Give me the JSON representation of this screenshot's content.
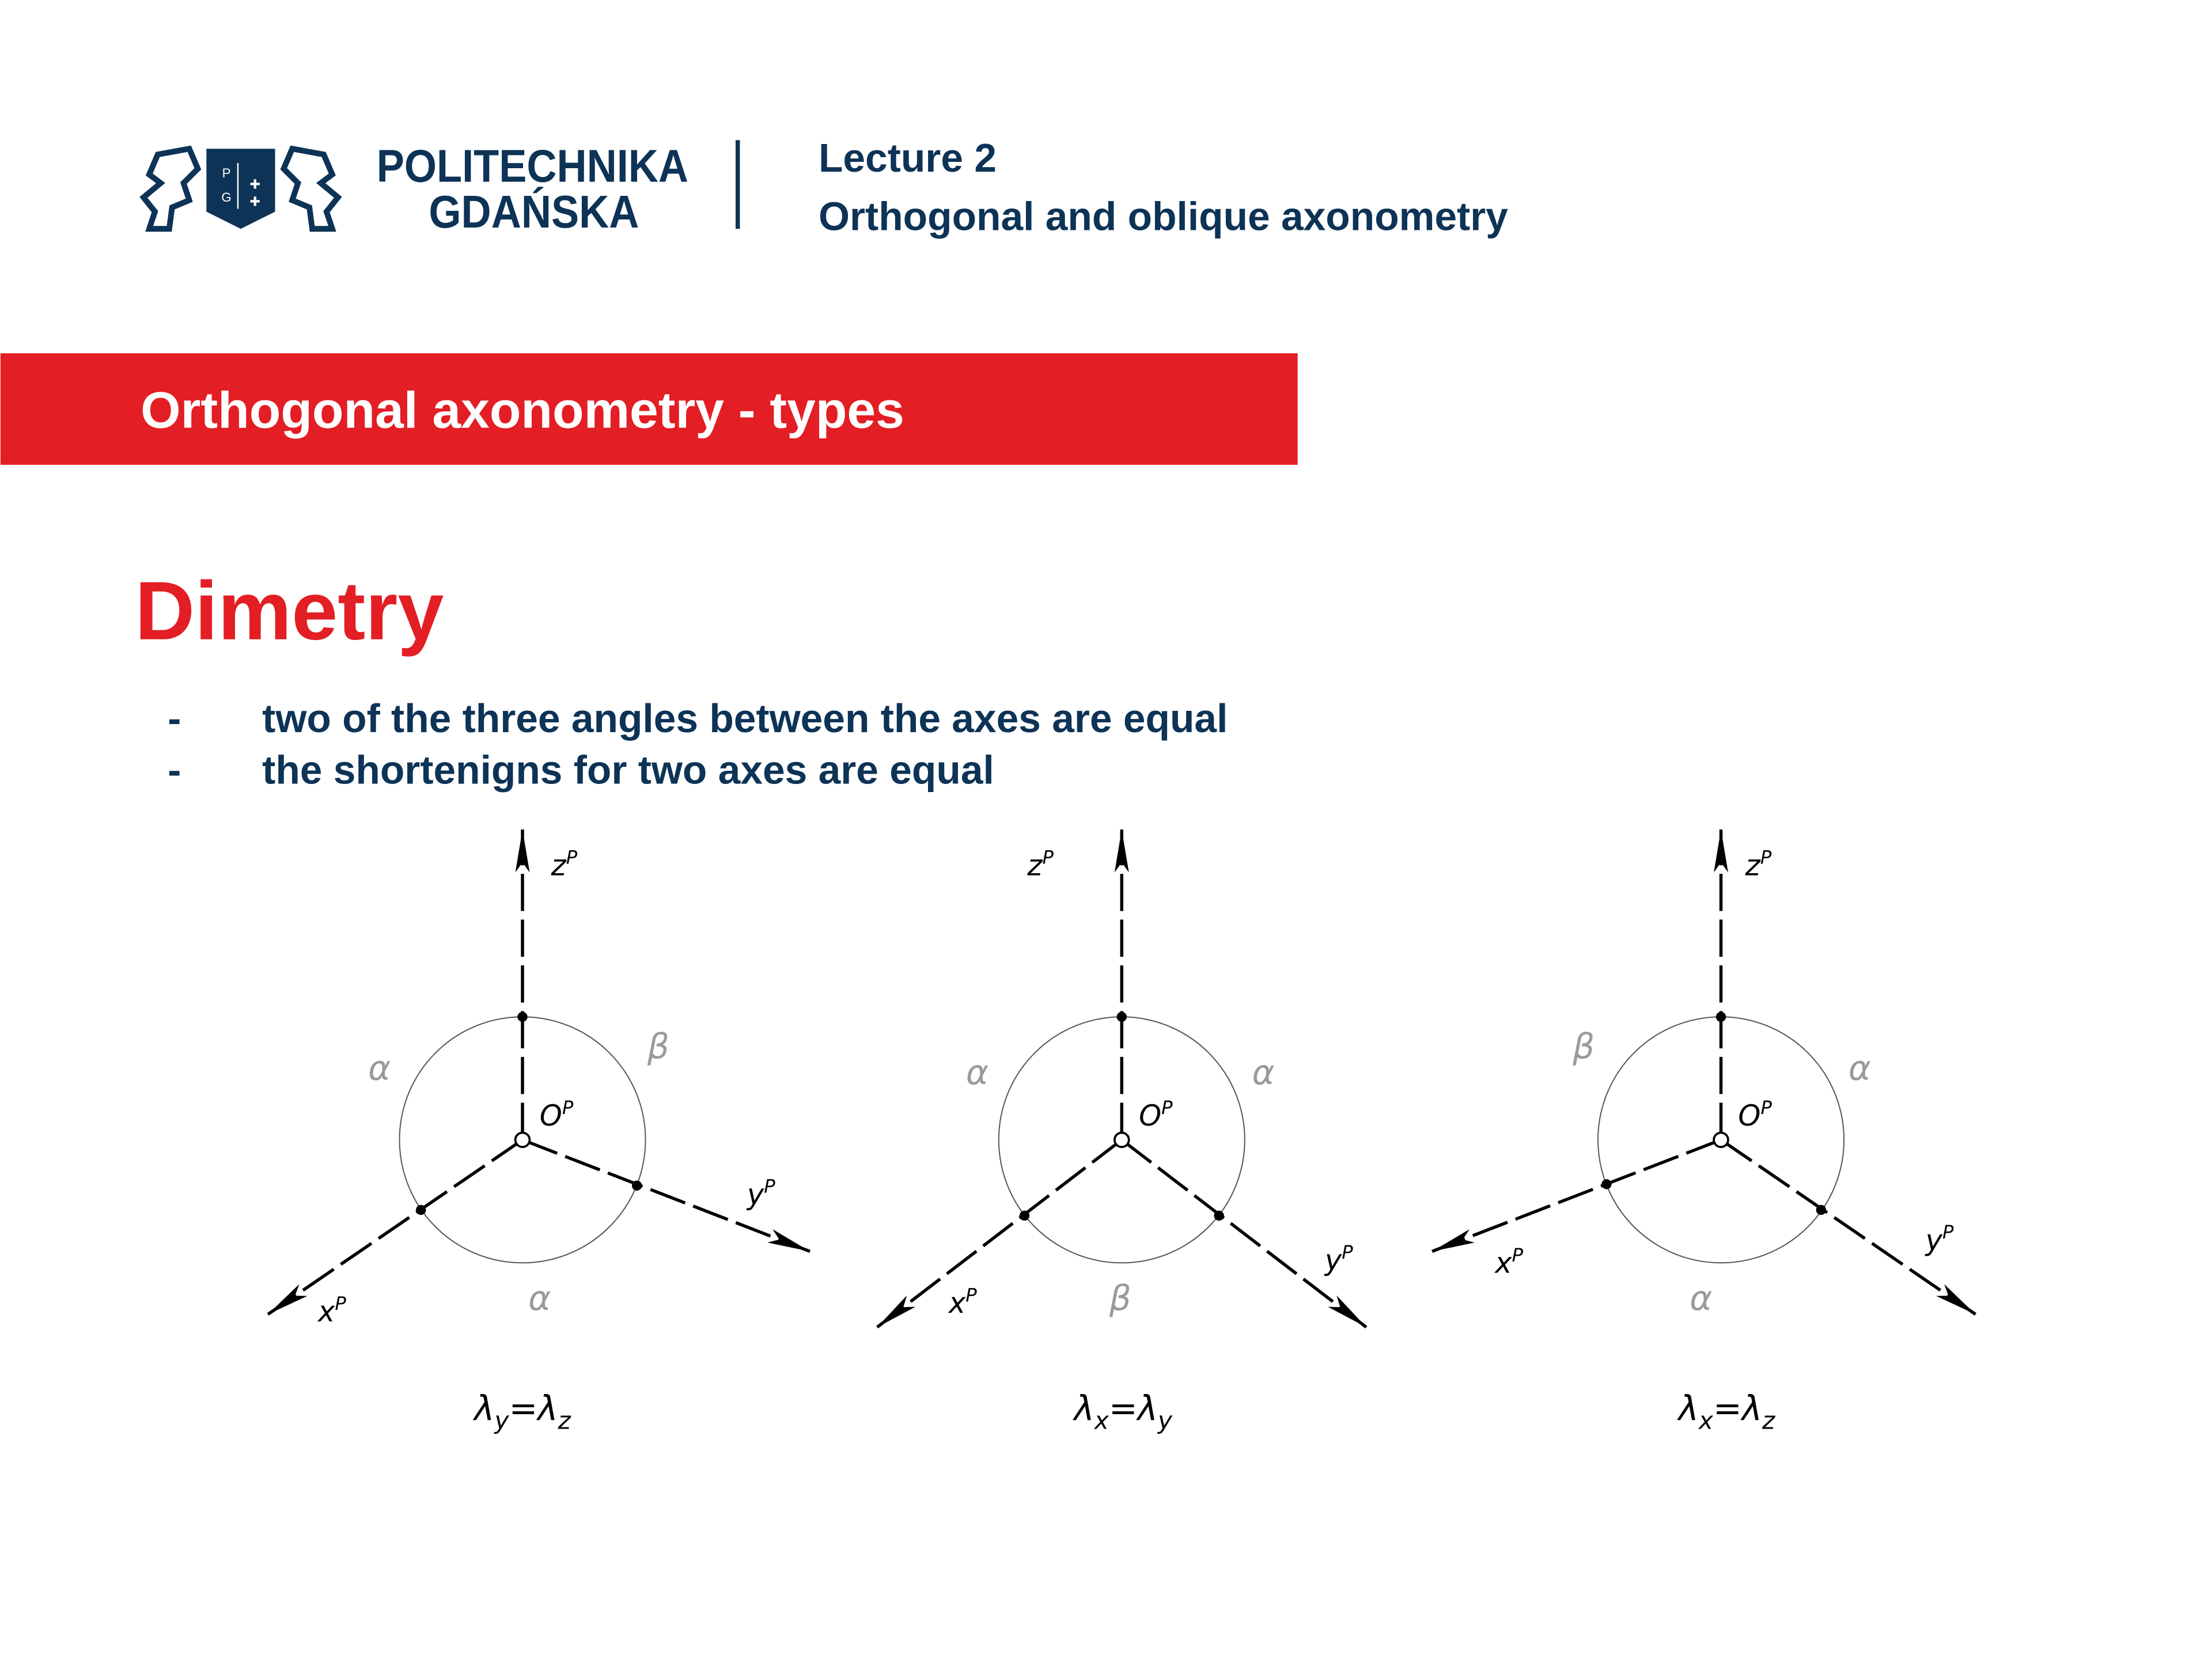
{
  "header": {
    "logo_line1": "POLITECHNIKA",
    "logo_line2": "GDAŃSKA",
    "logo_shield_letters": "P G",
    "lecture": "Lecture 2",
    "lecture_title": "Orthogonal and oblique axonometry"
  },
  "section_banner": "Orthogonal axonometry - types",
  "heading": "Dimetry",
  "bullets": [
    {
      "marker": "-",
      "text": "two of the three angles between the axes are equal"
    },
    {
      "marker": "-",
      "text": "the shortenigns for two axes are equal"
    }
  ],
  "colors": {
    "navy": "#0d3356",
    "red": "#e31e24",
    "angle_label": "#9a9a9a"
  },
  "diagrams": [
    {
      "axes": {
        "z": {
          "base": "z",
          "sup": "P"
        },
        "x": {
          "base": "x",
          "sup": "P"
        },
        "y": {
          "base": "y",
          "sup": "P"
        },
        "o": {
          "base": "O",
          "sup": "P"
        }
      },
      "angles": {
        "upper_left": "α",
        "upper_right": "β",
        "bottom": "α"
      },
      "caption": {
        "l1": "λ",
        "s1": "y",
        "eq": "=",
        "l2": "λ",
        "s2": "z"
      }
    },
    {
      "axes": {
        "z": {
          "base": "z",
          "sup": "P"
        },
        "x": {
          "base": "x",
          "sup": "P"
        },
        "y": {
          "base": "y",
          "sup": "P"
        },
        "o": {
          "base": "O",
          "sup": "P"
        }
      },
      "angles": {
        "upper_left": "α",
        "upper_right": "α",
        "bottom": "β"
      },
      "caption": {
        "l1": "λ",
        "s1": "x",
        "eq": "=",
        "l2": "λ",
        "s2": "y"
      }
    },
    {
      "axes": {
        "z": {
          "base": "z",
          "sup": "P"
        },
        "x": {
          "base": "x",
          "sup": "P"
        },
        "y": {
          "base": "y",
          "sup": "P"
        },
        "o": {
          "base": "O",
          "sup": "P"
        }
      },
      "angles": {
        "upper_left": "β",
        "upper_right": "α",
        "bottom": "α"
      },
      "caption": {
        "l1": "λ",
        "s1": "x",
        "eq": "=",
        "l2": "λ",
        "s2": "z"
      }
    }
  ]
}
